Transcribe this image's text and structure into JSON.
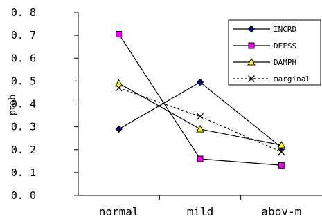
{
  "chart_data": {
    "type": "line",
    "categories": [
      "normal",
      "mild",
      "abov-m"
    ],
    "ylabel": "prob.",
    "xlabel": "",
    "title": "",
    "ylim": [
      0,
      0.8
    ],
    "yticks": [
      "0. 0",
      "0. 1",
      "0. 2",
      "0. 3",
      "0. 4",
      "0. 5",
      "0. 6",
      "0. 7",
      "0. 8"
    ],
    "grid": false,
    "legend_position": "top-right",
    "series": [
      {
        "name": "INCRD",
        "values": [
          0.29,
          0.495,
          0.21
        ],
        "marker": "diamond",
        "color": "#000080",
        "dash": "solid"
      },
      {
        "name": "DEFSS",
        "values": [
          0.705,
          0.16,
          0.132
        ],
        "marker": "square",
        "color": "#ff00ff",
        "dash": "solid"
      },
      {
        "name": "DAMPH",
        "values": [
          0.49,
          0.29,
          0.22
        ],
        "marker": "triangle",
        "color": "#ffff00",
        "dash": "solid"
      },
      {
        "name": "marginal",
        "values": [
          0.47,
          0.345,
          0.19
        ],
        "marker": "x",
        "color": "#000000",
        "dash": "dotted"
      }
    ]
  }
}
